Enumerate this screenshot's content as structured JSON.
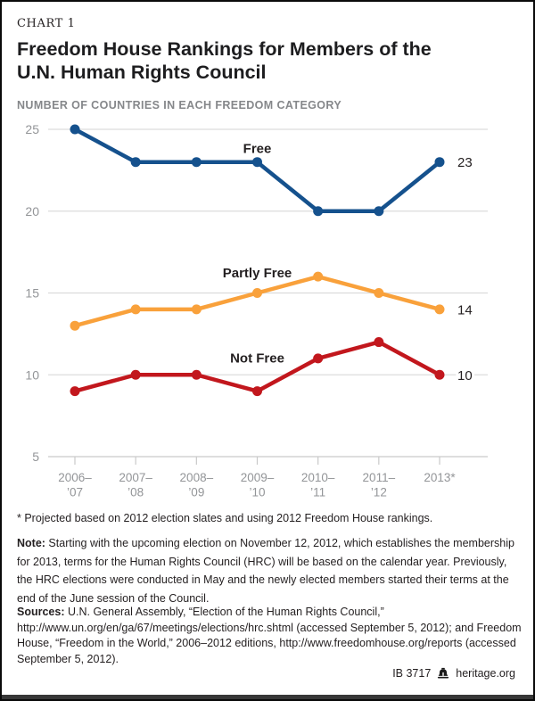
{
  "header": {
    "kicker": "CHART 1",
    "title_lines": [
      "Freedom House Rankings for Members of the",
      "U.N. Human Rights Council"
    ],
    "subtitle": "NUMBER OF COUNTRIES IN EACH FREEDOM CATEGORY"
  },
  "chart_data": {
    "type": "line",
    "title": "Freedom House Rankings for Members of the U.N. Human Rights Council",
    "subtitle": "NUMBER OF COUNTRIES IN EACH FREEDOM CATEGORY",
    "categories": [
      {
        "line1": "2006–",
        "line2": "’07"
      },
      {
        "line1": "2007–",
        "line2": "’08"
      },
      {
        "line1": "2008–",
        "line2": "’09"
      },
      {
        "line1": "2009–",
        "line2": "’10"
      },
      {
        "line1": "2010–",
        "line2": "’11"
      },
      {
        "line1": "2011–",
        "line2": "’12"
      },
      {
        "line1": "2013*",
        "line2": ""
      }
    ],
    "ylim": [
      5,
      25
    ],
    "yticks": [
      5,
      10,
      15,
      20,
      25
    ],
    "grid": true,
    "legend_position": "inline-labels",
    "series": [
      {
        "name": "Free",
        "color": "#15518d",
        "values": [
          25,
          23,
          23,
          23,
          20,
          20,
          23
        ],
        "end_label": "23",
        "label_anchor": {
          "index": 3,
          "value": 23.55
        }
      },
      {
        "name": "Partly Free",
        "color": "#f9a13b",
        "values": [
          13,
          14,
          14,
          15,
          16,
          15,
          14
        ],
        "end_label": "14",
        "label_anchor": {
          "index": 3,
          "value": 15.95
        }
      },
      {
        "name": "Not Free",
        "color": "#c2171d",
        "values": [
          9,
          10,
          10,
          9,
          11,
          12,
          10
        ],
        "end_label": "10",
        "label_anchor": {
          "index": 3,
          "value": 10.75
        }
      }
    ],
    "colors": {
      "grid": "#dcdcdc",
      "axis": "#c9c9c9",
      "axis_text": "#939598",
      "label_text": "#231f20"
    }
  },
  "footnote": "* Projected based on 2012 election slates and using 2012 Freedom House rankings.",
  "note": {
    "label": "Note:",
    "text": " Starting with the upcoming election on November 12, 2012, which establishes the membership for 2013, terms for the Human Rights Council (HRC) will be based on the calendar year. Previously, the HRC elections were conducted in May and the newly elected members started their terms at the end of the June session of the Council."
  },
  "sources": {
    "label": "Sources:",
    "text": " U.N. General Assembly, “Election of the Human Rights Council,” http://www.un.org/en/ga/67/meetings/elections/hrc.shtml (accessed September 5, 2012); and Freedom House, “Freedom in the World,” 2006–2012 editions, http://www.freedomhouse.org/reports (accessed September 5, 2012)."
  },
  "footer": {
    "report_id": "IB 3717",
    "site": "heritage.org",
    "logo": "heritage-liberty-bell"
  }
}
